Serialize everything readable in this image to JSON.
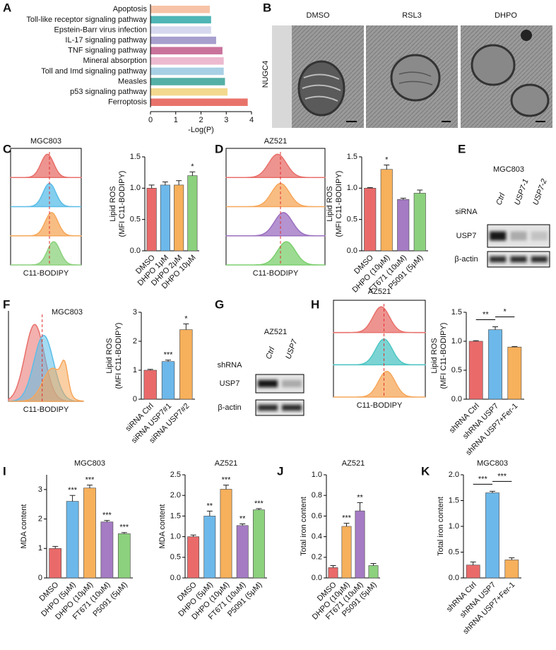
{
  "panel_labels": [
    "A",
    "B",
    "C",
    "D",
    "E",
    "F",
    "G",
    "H",
    "I",
    "J",
    "K"
  ],
  "micrographs": {
    "cell_line": "NUGC4",
    "conditions": [
      "DMSO",
      "RSL3",
      "DHPO"
    ]
  },
  "flow_plots": [
    {
      "title": "MGC803",
      "xlabel": "C11-BODIPY",
      "colors": [
        "#e8706b",
        "#5bbde8",
        "#f6a75a",
        "#8cd17d"
      ]
    },
    {
      "title": "AZ521",
      "xlabel": "C11-BODIPY",
      "colors": [
        "#e8706b",
        "#f6a75a",
        "#9b6fc0",
        "#7ccf6e"
      ]
    },
    {
      "title": "MGC803",
      "xlabel": "C11-BODIPY",
      "colors": [
        "#e8706b",
        "#5bbde8",
        "#f6a75a"
      ]
    },
    {
      "title": "AZ521",
      "xlabel": "C11-BODIPY",
      "colors": [
        "#e8706b",
        "#4fc6c4",
        "#f6a75a"
      ]
    }
  ],
  "blots": [
    {
      "title": "MGC803",
      "treatment": "siRNA",
      "lanes": [
        "Ctrl",
        "USP7-1",
        "USP7-2"
      ],
      "rows": [
        "USP7",
        "β-actin"
      ]
    },
    {
      "title": "AZ521",
      "treatment": "shRNA",
      "lanes": [
        "Ctrl",
        "USP7"
      ],
      "rows": [
        "USP7",
        "β-actin"
      ]
    }
  ],
  "chart_data": [
    {
      "type": "barh",
      "xlabel": "-Log(P)",
      "categories": [
        "Apoptosis",
        "Toll-like receptor signaling pathway",
        "Epstein-Barr virus infection",
        "IL-17 signaling pathway",
        "TNF signaling pathway",
        "Mineral absorption",
        "Toll and Imd signaling pathway",
        "Measles",
        "p53 signaling pathway",
        "Ferroptosis"
      ],
      "values": [
        2.35,
        2.4,
        2.4,
        2.6,
        2.85,
        2.9,
        2.9,
        2.95,
        3.05,
        3.85
      ],
      "colors": [
        "#f6c3a6",
        "#4fb5b5",
        "#d5d8ee",
        "#a79fcd",
        "#c9739b",
        "#edb9cf",
        "#a8d0e4",
        "#54b0a6",
        "#f3d98e",
        "#e8736b"
      ],
      "xlim": [
        0,
        4
      ],
      "xticks": [
        0,
        1,
        2,
        3,
        4
      ]
    },
    {
      "type": "bar",
      "ylabel": [
        "Lipid ROS",
        "(MFI C11-BODIPY)"
      ],
      "categories": [
        "DMSO",
        "DHPO 1μM",
        "DHPO 2μM",
        "DHPO 10μM"
      ],
      "values": [
        1.0,
        1.05,
        1.05,
        1.2
      ],
      "errors": [
        0.05,
        0.05,
        0.07,
        0.06
      ],
      "significance": [
        null,
        null,
        null,
        "*"
      ],
      "colors": [
        "#ea6a6a",
        "#6cb8ea",
        "#f7b05b",
        "#8cd17d"
      ],
      "ylim": [
        0,
        1.5
      ],
      "yticks": [
        {
          "value": 0,
          "label": "0.0"
        },
        0.5,
        {
          "value": 1,
          "label": "1.0"
        },
        1.5
      ]
    },
    {
      "type": "bar",
      "ylabel": [
        "Lipid ROS",
        "(MFI C11-BODIPY)"
      ],
      "categories": [
        "DMSO",
        "DHPO (10μM)",
        "FT671 (10uM)",
        "P5091 (5μM)"
      ],
      "values": [
        1.0,
        1.3,
        0.82,
        0.92
      ],
      "errors": [
        0.01,
        0.07,
        0.02,
        0.05
      ],
      "significance": [
        null,
        "*",
        null,
        null
      ],
      "colors": [
        "#ea6a6a",
        "#f7b05b",
        "#a57bc4",
        "#8cd17d"
      ],
      "ylim": [
        0,
        1.5
      ],
      "yticks": [
        {
          "value": 0,
          "label": "0.0"
        },
        0.5,
        {
          "value": 1,
          "label": "1.0"
        },
        1.5
      ]
    },
    {
      "type": "bar",
      "ylabel": [
        "Lipid ROS",
        "(MFI C11-BODIPY)"
      ],
      "categories": [
        "siRNA Ctrl",
        "siRNA USP7#1",
        "siRNA USP7#2"
      ],
      "values": [
        1.0,
        1.3,
        2.4
      ],
      "errors": [
        0.03,
        0.05,
        0.2
      ],
      "significance": [
        null,
        "***",
        "*"
      ],
      "colors": [
        "#ea6a6a",
        "#6cb8ea",
        "#f7b05b"
      ],
      "ylim": [
        0,
        3
      ],
      "yticks": [
        0,
        1,
        2,
        3
      ]
    },
    {
      "type": "bar",
      "ylabel": [
        "Lipid ROS",
        "(MFI C11-BODIPY)"
      ],
      "categories": [
        "shRNA Ctrl",
        "shRNA USP7",
        "shRNA USP7+Fer-1"
      ],
      "values": [
        1.0,
        1.2,
        0.9
      ],
      "errors": [
        0.01,
        0.05,
        0.01
      ],
      "brackets": [
        {
          "pair": [
            0,
            1
          ],
          "label": "**"
        },
        {
          "pair": [
            1,
            2
          ],
          "label": "*"
        }
      ],
      "colors": [
        "#ea6a6a",
        "#6cb8ea",
        "#f7b05b"
      ],
      "ylim": [
        0,
        1.5
      ],
      "yticks": [
        {
          "value": 0,
          "label": "0.0"
        },
        0.5,
        {
          "value": 1,
          "label": "1.0"
        },
        1.5
      ]
    },
    {
      "type": "bar",
      "title": "MGC803",
      "ylabel": [
        "MDA content"
      ],
      "categories": [
        "DMSO",
        "DHPO (5μM)",
        "DHPO (10μM)",
        "FT671 (10uM)",
        "P5091 (5μM)"
      ],
      "values": [
        1.0,
        2.6,
        3.05,
        1.9,
        1.5
      ],
      "errors": [
        0.07,
        0.2,
        0.1,
        0.05,
        0.04
      ],
      "significance": [
        null,
        "***",
        "***",
        "***",
        "***"
      ],
      "colors": [
        "#ea6a6a",
        "#6cb8ea",
        "#f7b05b",
        "#a57bc4",
        "#8cd17d"
      ],
      "ylim": [
        0,
        3.5
      ],
      "yticks": [
        0,
        1,
        2,
        3
      ]
    },
    {
      "type": "bar",
      "title": "AZ521",
      "ylabel": [
        "MDA content"
      ],
      "categories": [
        "DMSO",
        "DHPO (5μM)",
        "DHPO (10μM)",
        "FT671 (10uM)",
        "P5091 (5μM)"
      ],
      "values": [
        1.0,
        1.5,
        2.15,
        1.27,
        1.65
      ],
      "errors": [
        0.04,
        0.12,
        0.1,
        0.04,
        0.03
      ],
      "significance": [
        null,
        "**",
        "***",
        "**",
        "***"
      ],
      "colors": [
        "#ea6a6a",
        "#6cb8ea",
        "#f7b05b",
        "#a57bc4",
        "#8cd17d"
      ],
      "ylim": [
        0,
        2.5
      ],
      "yticks": [
        {
          "value": 0,
          "label": "0.0"
        },
        0.5,
        {
          "value": 1,
          "label": "1.0"
        },
        1.5,
        {
          "value": 2,
          "label": "2.0"
        },
        2.5
      ]
    },
    {
      "type": "bar",
      "title": "AZ521",
      "ylabel": [
        "Total iron content"
      ],
      "categories": [
        "DMSO",
        "DHPO (10μM)",
        "FT671 (10uM)",
        "P5091 (5μM)"
      ],
      "values": [
        0.1,
        0.5,
        0.65,
        0.12
      ],
      "errors": [
        0.02,
        0.03,
        0.08,
        0.02
      ],
      "significance": [
        null,
        "***",
        "**",
        null
      ],
      "colors": [
        "#ea6a6a",
        "#f7b05b",
        "#a57bc4",
        "#8cd17d"
      ],
      "ylim": [
        0,
        1
      ],
      "yticks": [
        {
          "value": 0,
          "label": "0.0"
        },
        0.2,
        0.4,
        0.6,
        0.8,
        {
          "value": 1,
          "label": "1.0"
        }
      ]
    },
    {
      "type": "bar",
      "title": "MGC803",
      "ylabel": [
        "Total iron content"
      ],
      "categories": [
        "shRNA Ctrl",
        "shRNA USP7",
        "shRNA USP7+Fer-1"
      ],
      "values": [
        0.25,
        1.65,
        0.35
      ],
      "errors": [
        0.06,
        0.03,
        0.04
      ],
      "brackets": [
        {
          "pair": [
            0,
            1
          ],
          "label": "***"
        },
        {
          "pair": [
            1,
            2
          ],
          "label": "***"
        }
      ],
      "colors": [
        "#ea6a6a",
        "#6cb8ea",
        "#f7b05b"
      ],
      "ylim": [
        0,
        2
      ],
      "yticks": [
        {
          "value": 0,
          "label": "0.0"
        },
        0.5,
        {
          "value": 1,
          "label": "1.0"
        },
        1.5,
        {
          "value": 2,
          "label": "2.0"
        }
      ]
    }
  ]
}
